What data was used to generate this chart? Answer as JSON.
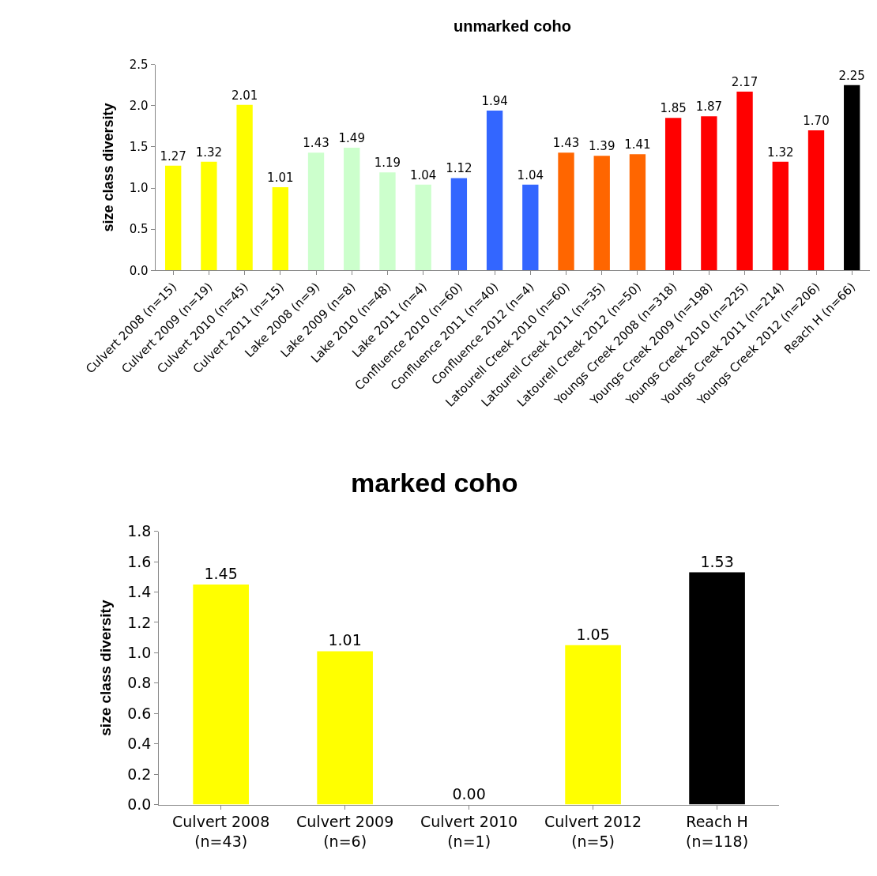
{
  "chart_data": [
    {
      "type": "bar",
      "title": "unmarked coho",
      "ylabel": "size class diversity",
      "categories": [
        "Culvert 2008 (n=15)",
        "Culvert 2009 (n=19)",
        "Culvert 2010 (n=45)",
        "Culvert 2011 (n=15)",
        "Lake 2008 (n=9)",
        "Lake 2009 (n=8)",
        "Lake 2010 (n=48)",
        "Lake 2011 (n=4)",
        "Confluence 2010 (n=60)",
        "Confluence 2011 (n=40)",
        "Confluence 2012 (n=4)",
        "Latourell Creek 2010 (n=60)",
        "Latourell Creek 2011 (n=35)",
        "Latourell Creek 2012 (n=50)",
        "Youngs Creek 2008 (n=318)",
        "Youngs Creek 2009 (n=198)",
        "Youngs Creek 2010 (n=225)",
        "Youngs Creek 2011 (n=214)",
        "Youngs Creek 2012 (n=206)",
        "Reach H (n=66)"
      ],
      "values": [
        1.27,
        1.32,
        2.01,
        1.01,
        1.43,
        1.49,
        1.19,
        1.04,
        1.12,
        1.94,
        1.04,
        1.43,
        1.39,
        1.41,
        1.85,
        1.87,
        2.17,
        1.32,
        1.7,
        2.25
      ],
      "value_labels": [
        "1.27",
        "1.32",
        "2.01",
        "1.01",
        "1.43",
        "1.49",
        "1.19",
        "1.04",
        "1.12",
        "1.94",
        "1.04",
        "1.43",
        "1.39",
        "1.41",
        "1.85",
        "1.87",
        "2.17",
        "1.32",
        "1.70",
        "2.25"
      ],
      "colors": [
        "#ffff00",
        "#ffff00",
        "#ffff00",
        "#ffff00",
        "#ccffcc",
        "#ccffcc",
        "#ccffcc",
        "#ccffcc",
        "#3366ff",
        "#3366ff",
        "#3366ff",
        "#ff6600",
        "#ff6600",
        "#ff6600",
        "#ff0000",
        "#ff0000",
        "#ff0000",
        "#ff0000",
        "#ff0000",
        "#000000"
      ],
      "ylim": [
        0,
        2.5
      ],
      "yticks": [
        {
          "value": 0,
          "label": "0.0"
        },
        {
          "value": 0.5,
          "label": "0.5"
        },
        {
          "value": 1,
          "label": "1.0"
        },
        {
          "value": 1.5,
          "label": "1.5"
        },
        {
          "value": 2,
          "label": "2.0"
        },
        {
          "value": 2.5,
          "label": "2.5"
        }
      ]
    },
    {
      "type": "bar",
      "title": "marked coho",
      "ylabel": "size class diversity",
      "categories": [
        "Culvert 2008\n(n=43)",
        "Culvert 2009\n(n=6)",
        "Culvert 2010\n(n=1)",
        "Culvert 2012\n(n=5)",
        "Reach H\n(n=118)"
      ],
      "values": [
        1.45,
        1.01,
        0.0,
        1.05,
        1.53
      ],
      "value_labels": [
        "1.45",
        "1.01",
        "0.00",
        "1.05",
        "1.53"
      ],
      "colors": [
        "#ffff00",
        "#ffff00",
        "#ffff00",
        "#ffff00",
        "#000000"
      ],
      "ylim": [
        0,
        1.8
      ],
      "yticks": [
        {
          "value": 0,
          "label": "0.0"
        },
        {
          "value": 0.2,
          "label": "0.2"
        },
        {
          "value": 0.4,
          "label": "0.4"
        },
        {
          "value": 0.6,
          "label": "0.6"
        },
        {
          "value": 0.8,
          "label": "0.8"
        },
        {
          "value": 1,
          "label": "1.0"
        },
        {
          "value": 1.2,
          "label": "1.2"
        },
        {
          "value": 1.4,
          "label": "1.4"
        },
        {
          "value": 1.6,
          "label": "1.6"
        },
        {
          "value": 1.8,
          "label": "1.8"
        }
      ]
    }
  ]
}
